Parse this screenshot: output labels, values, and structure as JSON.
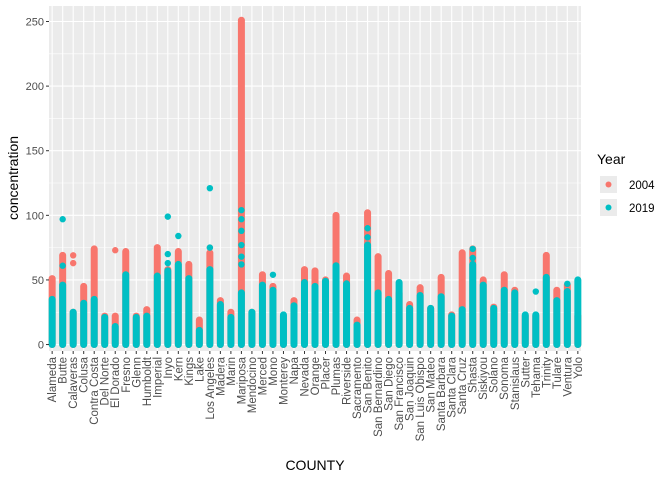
{
  "chart_data": {
    "type": "scatter",
    "title": "",
    "xlabel": "COUNTY",
    "ylabel": "concentration",
    "ylim": [
      -5,
      262
    ],
    "yticks": [
      0,
      50,
      100,
      150,
      200,
      250
    ],
    "grid": true,
    "legend": {
      "title": "Year",
      "position": "right"
    },
    "categories": [
      "Alameda",
      "Butte",
      "Calaveras",
      "Colusa",
      "Contra Costa",
      "Del Norte",
      "El Dorado",
      "Fresno",
      "Glenn",
      "Humboldt",
      "Imperial",
      "Inyo",
      "Kern",
      "Kings",
      "Lake",
      "Los Angeles",
      "Madera",
      "Marin",
      "Mariposa",
      "Mendocino",
      "Merced",
      "Mono",
      "Monterey",
      "Napa",
      "Nevada",
      "Orange",
      "Placer",
      "Plumas",
      "Riverside",
      "Sacramento",
      "San Benito",
      "San Bernardino",
      "San Diego",
      "San Francisco",
      "San Joaquin",
      "San Luis Obispo",
      "San Mateo",
      "Santa Barbara",
      "Santa Clara",
      "Santa Cruz",
      "Shasta",
      "Siskiyou",
      "Solano",
      "Sonoma",
      "Stanislaus",
      "Sutter",
      "Tehama",
      "Trinity",
      "Tulare",
      "Ventura",
      "Yolo"
    ],
    "x_positions": [
      1,
      3,
      5,
      7,
      9,
      11,
      13,
      15,
      17,
      19,
      21,
      23,
      25,
      27,
      29,
      31,
      33,
      35,
      37,
      39,
      41,
      43,
      45,
      47,
      49,
      51,
      53,
      55,
      57,
      59,
      61,
      63,
      65,
      67,
      69,
      71,
      73,
      75,
      77,
      79,
      81,
      83,
      85,
      87,
      89,
      91,
      93,
      95,
      97,
      99,
      101
    ],
    "x_range": [
      0.4,
      101.6
    ],
    "series": [
      {
        "name": "2004",
        "color": "#F8766D",
        "bands": [
          [
            0,
            51
          ],
          [
            0,
            69
          ],
          [
            0,
            25
          ],
          [
            0,
            45
          ],
          [
            0,
            74
          ],
          [
            0,
            22
          ],
          [
            0,
            22
          ],
          [
            0,
            72
          ],
          [
            0,
            22
          ],
          [
            0,
            27
          ],
          [
            0,
            75
          ],
          [
            0,
            58
          ],
          [
            0,
            72
          ],
          [
            0,
            62
          ],
          [
            0,
            19
          ],
          [
            0,
            71
          ],
          [
            0,
            34
          ],
          [
            0,
            25
          ],
          [
            0,
            251
          ],
          [
            0,
            25
          ],
          [
            0,
            54
          ],
          [
            0,
            45
          ],
          [
            0,
            22
          ],
          [
            0,
            34
          ],
          [
            0,
            58
          ],
          [
            0,
            57
          ],
          [
            0,
            50
          ],
          [
            0,
            100
          ],
          [
            0,
            53
          ],
          [
            0,
            19
          ],
          [
            0,
            102
          ],
          [
            0,
            68
          ],
          [
            0,
            55
          ],
          [
            0,
            40
          ],
          [
            0,
            31
          ],
          [
            0,
            44
          ],
          [
            0,
            28
          ],
          [
            0,
            52
          ],
          [
            0,
            23
          ],
          [
            0,
            71
          ],
          [
            0,
            74
          ],
          [
            0,
            50
          ],
          [
            0,
            29
          ],
          [
            0,
            54
          ],
          [
            0,
            42
          ],
          [
            0,
            22
          ],
          [
            0,
            22
          ],
          [
            0,
            69
          ],
          [
            0,
            42
          ],
          [
            0,
            46
          ],
          [
            0,
            22
          ]
        ],
        "extra_points": [
          [
            37,
            251
          ],
          [
            37,
            171
          ],
          [
            37,
            148
          ],
          [
            37,
            131
          ],
          [
            37,
            123
          ],
          [
            37,
            110
          ],
          [
            37,
            104
          ],
          [
            37,
            90
          ],
          [
            37,
            84
          ],
          [
            37,
            82
          ],
          [
            13,
            73
          ],
          [
            9,
            74
          ],
          [
            31,
            75
          ],
          [
            55,
            100
          ],
          [
            55,
            95
          ],
          [
            61,
            102
          ],
          [
            61,
            96
          ],
          [
            63,
            68
          ],
          [
            79,
            71
          ],
          [
            81,
            70
          ],
          [
            21,
            75
          ],
          [
            5,
            69
          ],
          [
            5,
            63
          ]
        ]
      },
      {
        "name": "2019",
        "color": "#00BFC4",
        "bands": [
          [
            0,
            35
          ],
          [
            0,
            46
          ],
          [
            0,
            25
          ],
          [
            0,
            32
          ],
          [
            0,
            35
          ],
          [
            0,
            21
          ],
          [
            0,
            14
          ],
          [
            0,
            54
          ],
          [
            0,
            21
          ],
          [
            0,
            22
          ],
          [
            0,
            53
          ],
          [
            0,
            57
          ],
          [
            0,
            62
          ],
          [
            0,
            51
          ],
          [
            0,
            11
          ],
          [
            0,
            58
          ],
          [
            0,
            31
          ],
          [
            0,
            21
          ],
          [
            0,
            40
          ],
          [
            0,
            25
          ],
          [
            0,
            46
          ],
          [
            0,
            42
          ],
          [
            0,
            23
          ],
          [
            0,
            30
          ],
          [
            0,
            48
          ],
          [
            0,
            45
          ],
          [
            0,
            49
          ],
          [
            0,
            61
          ],
          [
            0,
            47
          ],
          [
            0,
            15
          ],
          [
            0,
            77
          ],
          [
            0,
            40
          ],
          [
            0,
            35
          ],
          [
            0,
            48
          ],
          [
            0,
            28
          ],
          [
            0,
            38
          ],
          [
            0,
            28
          ],
          [
            0,
            37
          ],
          [
            0,
            22
          ],
          [
            0,
            27
          ],
          [
            0,
            62
          ],
          [
            0,
            46
          ],
          [
            0,
            28
          ],
          [
            0,
            42
          ],
          [
            0,
            40
          ],
          [
            0,
            23
          ],
          [
            0,
            23
          ],
          [
            0,
            52
          ],
          [
            0,
            34
          ],
          [
            0,
            41
          ],
          [
            0,
            50
          ]
        ],
        "extra_points": [
          [
            3,
            97
          ],
          [
            3,
            61
          ],
          [
            23,
            99
          ],
          [
            23,
            70
          ],
          [
            23,
            63
          ],
          [
            25,
            84
          ],
          [
            31,
            121
          ],
          [
            31,
            75
          ],
          [
            37,
            104
          ],
          [
            37,
            97
          ],
          [
            37,
            88
          ],
          [
            37,
            77
          ],
          [
            37,
            68
          ],
          [
            37,
            62
          ],
          [
            43,
            54
          ],
          [
            61,
            90
          ],
          [
            61,
            83
          ],
          [
            61,
            72
          ],
          [
            61,
            64
          ],
          [
            81,
            74
          ],
          [
            81,
            67
          ],
          [
            81,
            52
          ],
          [
            93,
            41
          ],
          [
            21,
            53
          ],
          [
            99,
            47
          ]
        ]
      }
    ]
  }
}
